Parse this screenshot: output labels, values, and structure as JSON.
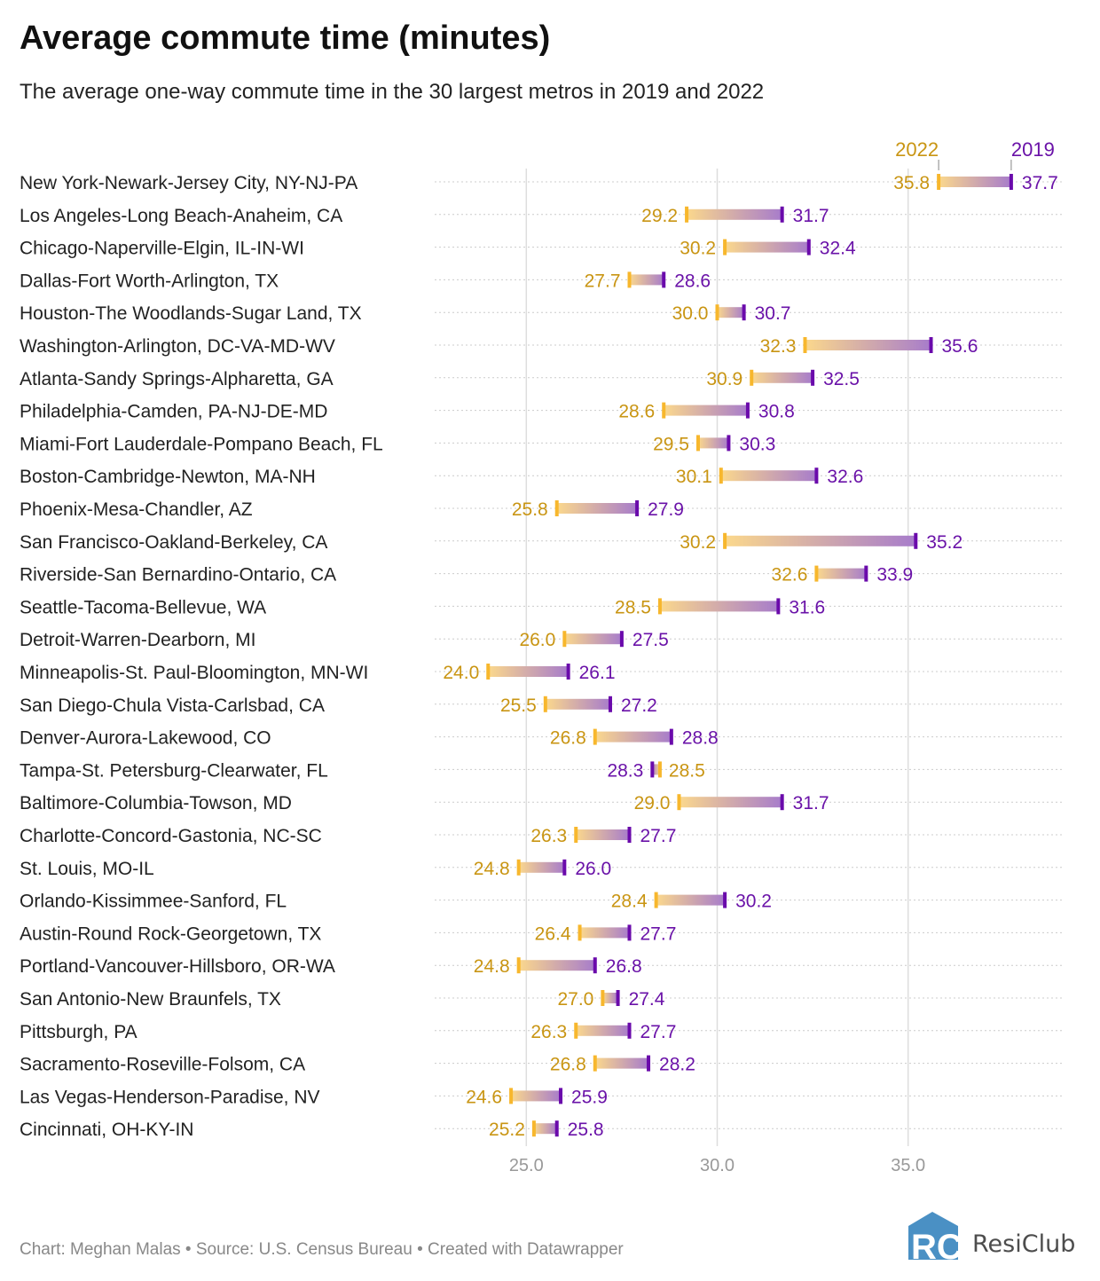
{
  "title": "Average commute time (minutes)",
  "subtitle": "The average one-way commute time in the 30 largest metros in 2019 and 2022",
  "footer": "Chart: Meghan Malas • Source: U.S. Census Bureau • Created with Datawrapper",
  "logo_text": "ResiClub",
  "chart_data": {
    "type": "range-dot",
    "xlim": [
      22.6,
      39.05
    ],
    "xticks": [
      25.0,
      30.0,
      35.0
    ],
    "xtick_labels": [
      "25.0",
      "30.0",
      "35.0"
    ],
    "grid": true,
    "legend": {
      "series_2022": "2022",
      "series_2019": "2019",
      "placement": "top"
    },
    "colors": {
      "y2022": "#f7b72d",
      "y2022_text": "#c99513",
      "y2019": "#6a0aab",
      "y2019_text": "#6a12a8"
    },
    "categories": [
      "New York-Newark-Jersey City, NY-NJ-PA",
      "Los Angeles-Long Beach-Anaheim, CA",
      "Chicago-Naperville-Elgin, IL-IN-WI",
      "Dallas-Fort Worth-Arlington, TX",
      "Houston-The Woodlands-Sugar Land, TX",
      "Washington-Arlington, DC-VA-MD-WV",
      "Atlanta-Sandy Springs-Alpharetta, GA",
      "Philadelphia-Camden, PA-NJ-DE-MD",
      "Miami-Fort Lauderdale-Pompano Beach, FL",
      "Boston-Cambridge-Newton, MA-NH",
      "Phoenix-Mesa-Chandler, AZ",
      "San Francisco-Oakland-Berkeley, CA",
      "Riverside-San Bernardino-Ontario, CA",
      "Seattle-Tacoma-Bellevue, WA",
      "Detroit-Warren-Dearborn, MI",
      "Minneapolis-St. Paul-Bloomington, MN-WI",
      "San Diego-Chula Vista-Carlsbad, CA",
      "Denver-Aurora-Lakewood, CO",
      "Tampa-St. Petersburg-Clearwater, FL",
      "Baltimore-Columbia-Towson, MD",
      "Charlotte-Concord-Gastonia, NC-SC",
      "St. Louis, MO-IL",
      "Orlando-Kissimmee-Sanford, FL",
      "Austin-Round Rock-Georgetown, TX",
      "Portland-Vancouver-Hillsboro, OR-WA",
      "San Antonio-New Braunfels, TX",
      "Pittsburgh, PA",
      "Sacramento-Roseville-Folsom, CA",
      "Las Vegas-Henderson-Paradise, NV",
      "Cincinnati, OH-KY-IN"
    ],
    "series": [
      {
        "name": "2022",
        "values": [
          35.8,
          29.2,
          30.2,
          27.7,
          30.0,
          32.3,
          30.9,
          28.6,
          29.5,
          30.1,
          25.8,
          30.2,
          32.6,
          28.5,
          26.0,
          24.0,
          25.5,
          26.8,
          28.5,
          29.0,
          26.3,
          24.8,
          28.4,
          26.4,
          24.8,
          27.0,
          26.3,
          26.8,
          24.6,
          25.2
        ]
      },
      {
        "name": "2019",
        "values": [
          37.7,
          31.7,
          32.4,
          28.6,
          30.7,
          35.6,
          32.5,
          30.8,
          30.3,
          32.6,
          27.9,
          35.2,
          33.9,
          31.6,
          27.5,
          26.1,
          27.2,
          28.8,
          28.3,
          31.7,
          27.7,
          26.0,
          30.2,
          27.7,
          26.8,
          27.4,
          27.7,
          28.2,
          25.9,
          25.8
        ]
      }
    ]
  }
}
